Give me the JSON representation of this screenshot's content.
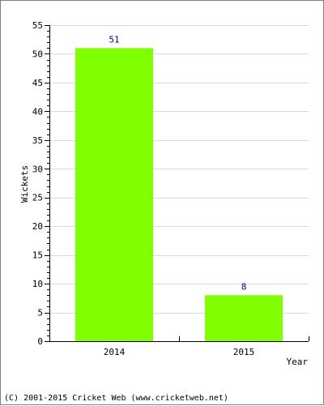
{
  "footer": "(C) 2001-2015 Cricket Web (www.cricketweb.net)",
  "colors": {
    "bar": "#80ff00",
    "label": "#000080",
    "grid": "#d9d9d9",
    "axis": "#000000"
  },
  "chart_data": {
    "type": "bar",
    "categories": [
      "2014",
      "2015"
    ],
    "values": [
      51,
      8
    ],
    "data_labels": [
      "51",
      "8"
    ],
    "xlabel": "Year",
    "ylabel": "Wickets",
    "ylim": [
      0,
      55
    ],
    "yticks": [
      0,
      5,
      10,
      15,
      20,
      25,
      30,
      35,
      40,
      45,
      50,
      55
    ],
    "grid": true,
    "legend": "none"
  }
}
